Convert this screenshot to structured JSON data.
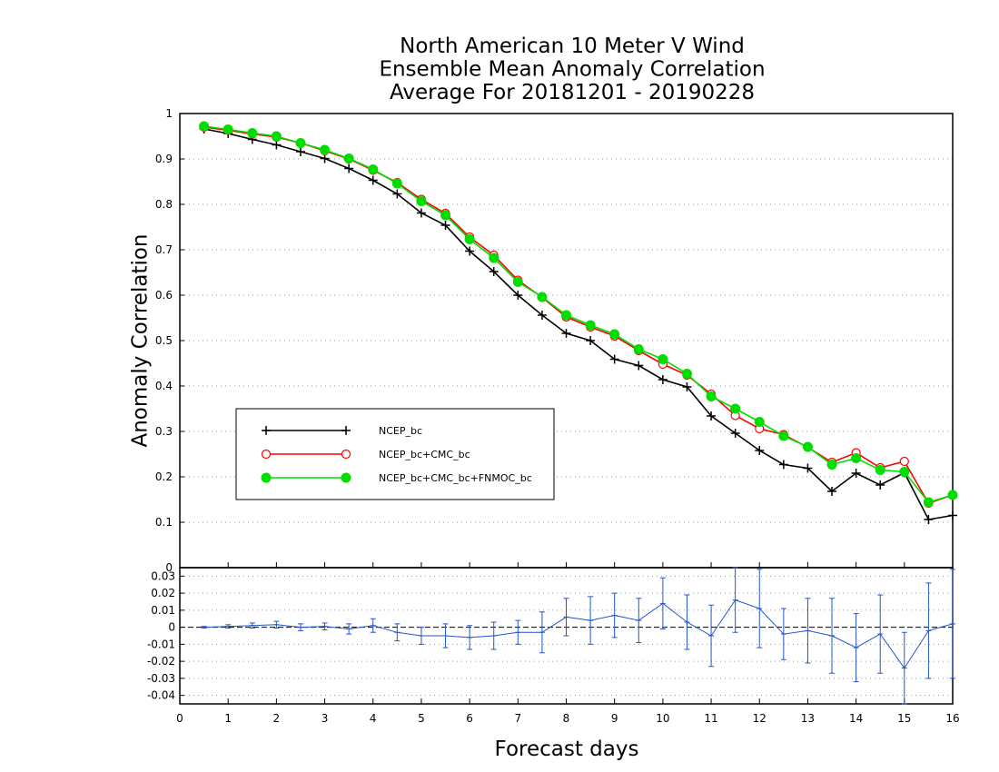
{
  "chart_data": {
    "type": "line",
    "title": [
      "North American 10 Meter V Wind",
      "Ensemble Mean Anomaly Correlation",
      "Average For 20181201 - 20190228"
    ],
    "xlabel": "Forecast days",
    "ylabel": "Anomaly Correlation",
    "xlim": [
      0,
      16
    ],
    "ylim": [
      0,
      1
    ],
    "grid": "dotted horizontal",
    "legend_position": "middle-left",
    "x_ticks": [
      "0",
      "1",
      "2",
      "3",
      "4",
      "5",
      "6",
      "7",
      "8",
      "9",
      "10",
      "11",
      "12",
      "13",
      "14",
      "15",
      "16"
    ],
    "y_ticks": [
      "0",
      "0.1",
      "0.2",
      "0.3",
      "0.4",
      "0.5",
      "0.6",
      "0.7",
      "0.8",
      "0.9",
      "1"
    ],
    "x": [
      0.5,
      1,
      1.5,
      2,
      2.5,
      3,
      3.5,
      4,
      4.5,
      5,
      5.5,
      6,
      6.5,
      7,
      7.5,
      8,
      8.5,
      9,
      9.5,
      10,
      10.5,
      11,
      11.5,
      12,
      12.5,
      13,
      13.5,
      14,
      14.5,
      15,
      15.5,
      16
    ],
    "series": [
      {
        "name": "NCEP_bc",
        "color": "#000000",
        "marker": "plus",
        "values": [
          0.966,
          0.956,
          0.943,
          0.931,
          0.916,
          0.901,
          0.879,
          0.853,
          0.823,
          0.781,
          0.754,
          0.697,
          0.652,
          0.6,
          0.556,
          0.516,
          0.5,
          0.459,
          0.445,
          0.414,
          0.398,
          0.334,
          0.296,
          0.258,
          0.227,
          0.219,
          0.168,
          0.208,
          0.182,
          0.209,
          0.106,
          0.115
        ]
      },
      {
        "name": "NCEP_bc+CMC_bc",
        "color": "#ff0000",
        "marker": "open-circle",
        "values": [
          0.97,
          0.963,
          0.955,
          0.948,
          0.935,
          0.918,
          0.9,
          0.875,
          0.848,
          0.811,
          0.78,
          0.728,
          0.688,
          0.633,
          0.595,
          0.552,
          0.53,
          0.51,
          0.478,
          0.448,
          0.424,
          0.382,
          0.335,
          0.306,
          0.293,
          0.265,
          0.232,
          0.253,
          0.22,
          0.234,
          0.142,
          0.16
        ]
      },
      {
        "name": "NCEP_bc+CMC_bc+FNMOC_bc",
        "color": "#00dd00",
        "marker": "filled-circle",
        "values": [
          0.972,
          0.965,
          0.957,
          0.95,
          0.935,
          0.92,
          0.901,
          0.877,
          0.846,
          0.807,
          0.776,
          0.723,
          0.682,
          0.629,
          0.596,
          0.556,
          0.534,
          0.514,
          0.481,
          0.459,
          0.427,
          0.377,
          0.35,
          0.321,
          0.29,
          0.266,
          0.227,
          0.241,
          0.215,
          0.211,
          0.144,
          0.16
        ]
      }
    ],
    "diff_panel": {
      "ylim": [
        -0.045,
        0.035
      ],
      "y_ticks": [
        "-0.04",
        "-0.03",
        "-0.02",
        "-0.01",
        "0",
        "0.01",
        "0.02",
        "0.03"
      ],
      "color": "#2255cc",
      "values": [
        0,
        0.0005,
        0.001,
        0.0015,
        0,
        0.0005,
        -0.001,
        0.001,
        -0.003,
        -0.005,
        -0.005,
        -0.006,
        -0.005,
        -0.003,
        -0.003,
        0.006,
        0.004,
        0.007,
        0.004,
        0.014,
        0.003,
        -0.005,
        0.016,
        0.011,
        -0.004,
        -0.002,
        -0.005,
        -0.012,
        -0.004,
        -0.024,
        -0.002,
        0.002
      ],
      "err": [
        0.0005,
        0.001,
        0.0015,
        0.002,
        0.002,
        0.002,
        0.003,
        0.004,
        0.005,
        0.005,
        0.007,
        0.007,
        0.008,
        0.007,
        0.012,
        0.011,
        0.014,
        0.013,
        0.013,
        0.015,
        0.016,
        0.018,
        0.019,
        0.023,
        0.015,
        0.019,
        0.022,
        0.02,
        0.023,
        0.021,
        0.028,
        0.032
      ]
    }
  }
}
